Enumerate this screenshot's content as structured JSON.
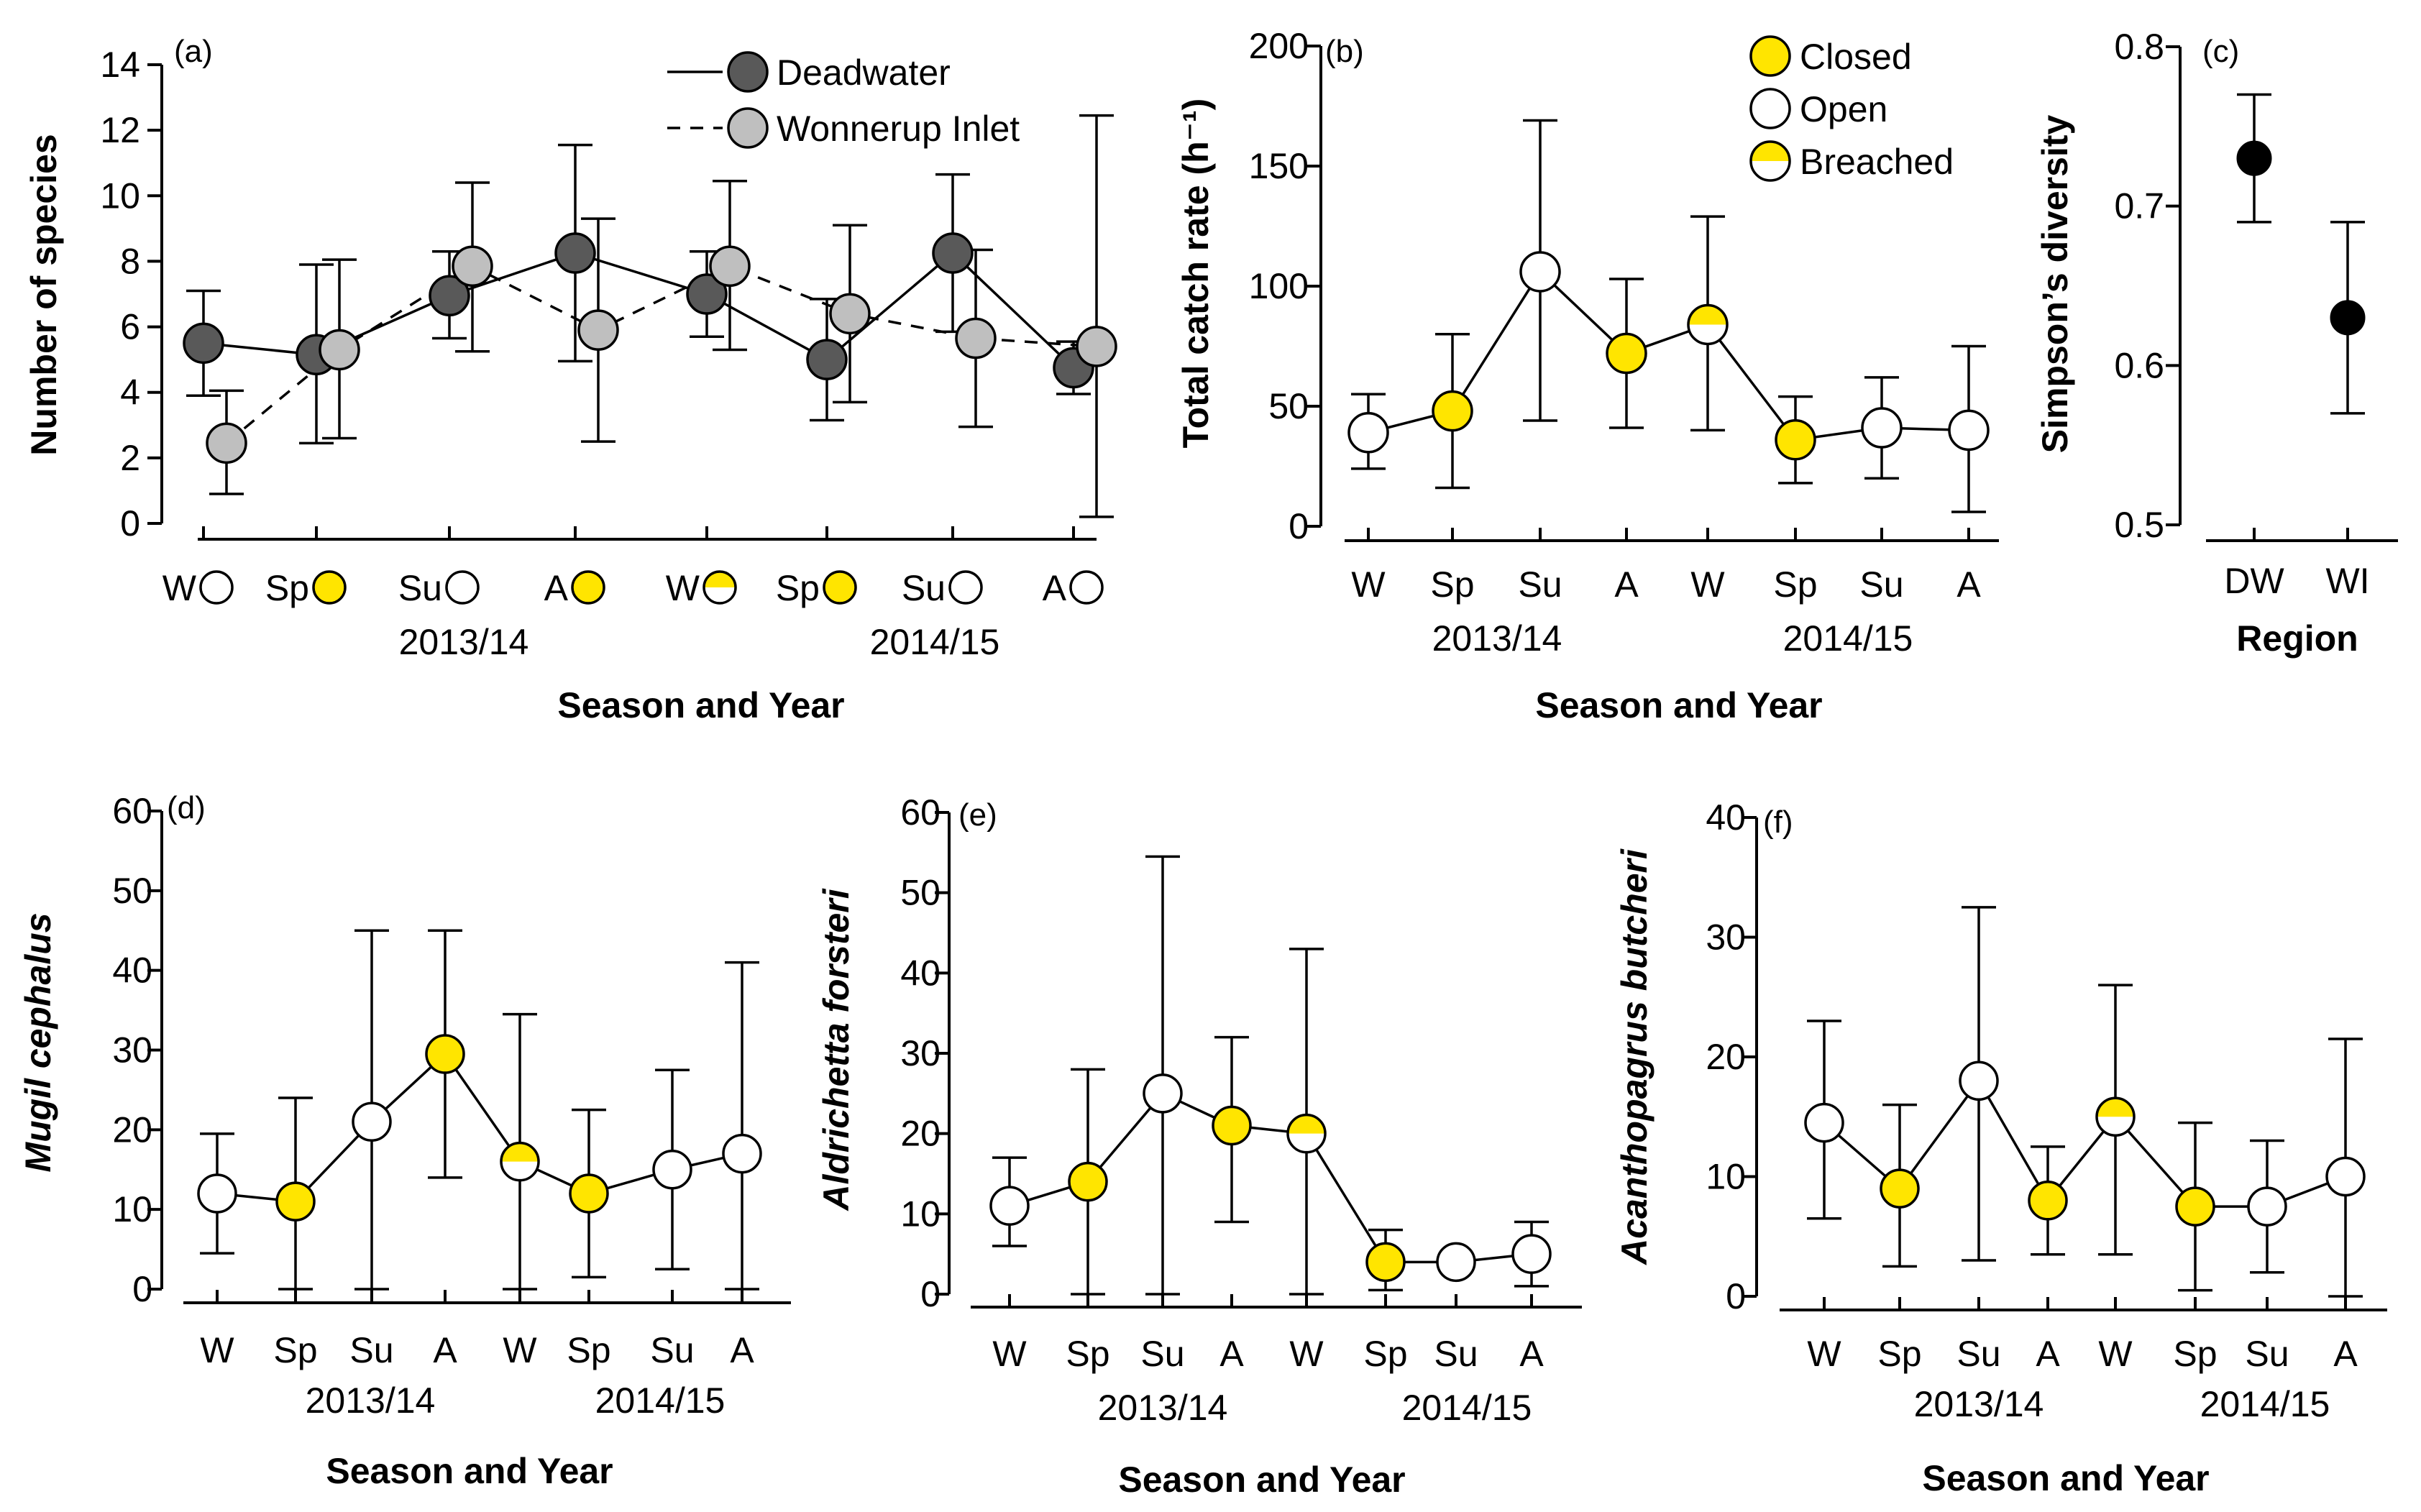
{
  "colors": {
    "closed": "#FFE500",
    "open": "#FFFFFF",
    "deadwater": "#595959",
    "wonnerup": "#BFBFBF",
    "dot": "#000000"
  },
  "seasons": [
    "W",
    "Sp",
    "Su",
    "A",
    "W",
    "Sp",
    "Su",
    "A"
  ],
  "years": [
    "2013/14",
    "2014/15"
  ],
  "season_states": [
    "open",
    "closed",
    "open",
    "closed",
    "breached",
    "closed",
    "open",
    "open"
  ],
  "xlabel": "Season and Year",
  "legend_mouth": [
    {
      "state": "closed",
      "label": "Closed"
    },
    {
      "state": "open",
      "label": "Open"
    },
    {
      "state": "breached",
      "label": "Breached"
    }
  ],
  "chart_data": [
    {
      "id": "a",
      "panel_label": "(a)",
      "type": "line",
      "ylabel": "Number of species",
      "xlabel": "Season and Year",
      "ylim": [
        0,
        14
      ],
      "yticks": [
        0,
        2,
        4,
        6,
        8,
        10,
        12,
        14
      ],
      "categories": [
        "W",
        "Sp",
        "Su",
        "A",
        "W",
        "Sp",
        "Su",
        "A"
      ],
      "year_labels": [
        "2013/14",
        "2014/15"
      ],
      "series": [
        {
          "name": "Deadwater",
          "dashed": false,
          "color": "deadwater",
          "values": [
            5.5,
            5.15,
            6.95,
            8.25,
            7.0,
            5.0,
            8.25,
            4.75
          ],
          "upper": [
            7.1,
            7.9,
            8.3,
            11.55,
            8.3,
            6.85,
            10.65,
            5.55
          ],
          "lower": [
            3.9,
            2.45,
            5.65,
            4.95,
            5.7,
            3.15,
            5.85,
            3.95
          ]
        },
        {
          "name": "Wonnerup Inlet",
          "dashed": true,
          "color": "wonnerup",
          "values": [
            2.45,
            5.3,
            7.85,
            5.9,
            7.85,
            6.4,
            5.65,
            5.4
          ],
          "upper": [
            4.05,
            8.05,
            10.4,
            9.3,
            10.45,
            9.1,
            8.35,
            12.45
          ],
          "lower": [
            0.9,
            2.6,
            5.25,
            2.5,
            5.3,
            3.7,
            2.95,
            0.2
          ]
        }
      ]
    },
    {
      "id": "b",
      "panel_label": "(b)",
      "type": "line",
      "ylabel": "Total catch rate (h⁻¹)",
      "xlabel": "Season and Year",
      "ylim": [
        0,
        200
      ],
      "yticks": [
        0,
        50,
        100,
        150,
        200
      ],
      "categories": [
        "W",
        "Sp",
        "Su",
        "A",
        "W",
        "Sp",
        "Su",
        "A"
      ],
      "year_labels": [
        "2013/14",
        "2014/15"
      ],
      "values": [
        39,
        48,
        106,
        72,
        84,
        36,
        41,
        40
      ],
      "upper": [
        55,
        80,
        169,
        103,
        129,
        54,
        62,
        75
      ],
      "lower": [
        24,
        16,
        44,
        41,
        40,
        18,
        20,
        6
      ]
    },
    {
      "id": "c",
      "panel_label": "(c)",
      "type": "scatter",
      "ylabel": "Simpson’s diversity",
      "xlabel": "Region",
      "ylim": [
        0.5,
        0.8
      ],
      "yticks": [
        "0.5",
        "0.6",
        "0.7",
        "0.8"
      ],
      "categories": [
        "DW",
        "WI"
      ],
      "values": [
        0.73,
        0.63
      ],
      "upper": [
        0.77,
        0.69
      ],
      "lower": [
        0.69,
        0.57
      ]
    },
    {
      "id": "d",
      "panel_label": "(d)",
      "type": "line",
      "ylabel": "Mugil cephalus",
      "xlabel": "Season and Year",
      "ylim": [
        0,
        60
      ],
      "yticks": [
        0,
        10,
        20,
        30,
        40,
        50,
        60
      ],
      "categories": [
        "W",
        "Sp",
        "Su",
        "A",
        "W",
        "Sp",
        "Su",
        "A"
      ],
      "year_labels": [
        "2013/14",
        "2014/15"
      ],
      "values": [
        12,
        11,
        21,
        29.5,
        16,
        12,
        15,
        17
      ],
      "upper": [
        19.5,
        24,
        45,
        45,
        34.5,
        22.5,
        27.5,
        41
      ],
      "lower": [
        4.5,
        0,
        0,
        14,
        0,
        1.5,
        2.5,
        0
      ]
    },
    {
      "id": "e",
      "panel_label": "(e)",
      "type": "line",
      "ylabel": "Aldrichetta forsteri",
      "xlabel": "Season and Year",
      "ylim": [
        0,
        60
      ],
      "yticks": [
        0,
        10,
        20,
        30,
        40,
        50,
        60
      ],
      "categories": [
        "W",
        "Sp",
        "Su",
        "A",
        "W",
        "Sp",
        "Su",
        "A"
      ],
      "year_labels": [
        "2013/14",
        "2014/15"
      ],
      "values": [
        11,
        14,
        25,
        21,
        20,
        4,
        4,
        5
      ],
      "upper": [
        17,
        28,
        54.5,
        32,
        43,
        8,
        4.5,
        9
      ],
      "lower": [
        6,
        0,
        0,
        9,
        0,
        0.5,
        4,
        1
      ]
    },
    {
      "id": "f",
      "panel_label": "(f)",
      "type": "line",
      "ylabel": "Acanthopagrus butcheri",
      "xlabel": "Season and Year",
      "ylim": [
        0,
        40
      ],
      "yticks": [
        0,
        10,
        20,
        30,
        40
      ],
      "categories": [
        "W",
        "Sp",
        "Su",
        "A",
        "W",
        "Sp",
        "Su",
        "A"
      ],
      "year_labels": [
        "2013/14",
        "2014/15"
      ],
      "values": [
        14.5,
        9,
        18,
        8,
        15,
        7.5,
        7.5,
        10
      ],
      "upper": [
        23,
        16,
        32.5,
        12.5,
        26,
        14.5,
        13,
        21.5
      ],
      "lower": [
        6.5,
        2.5,
        3,
        3.5,
        3.5,
        0.5,
        2,
        0
      ]
    }
  ]
}
